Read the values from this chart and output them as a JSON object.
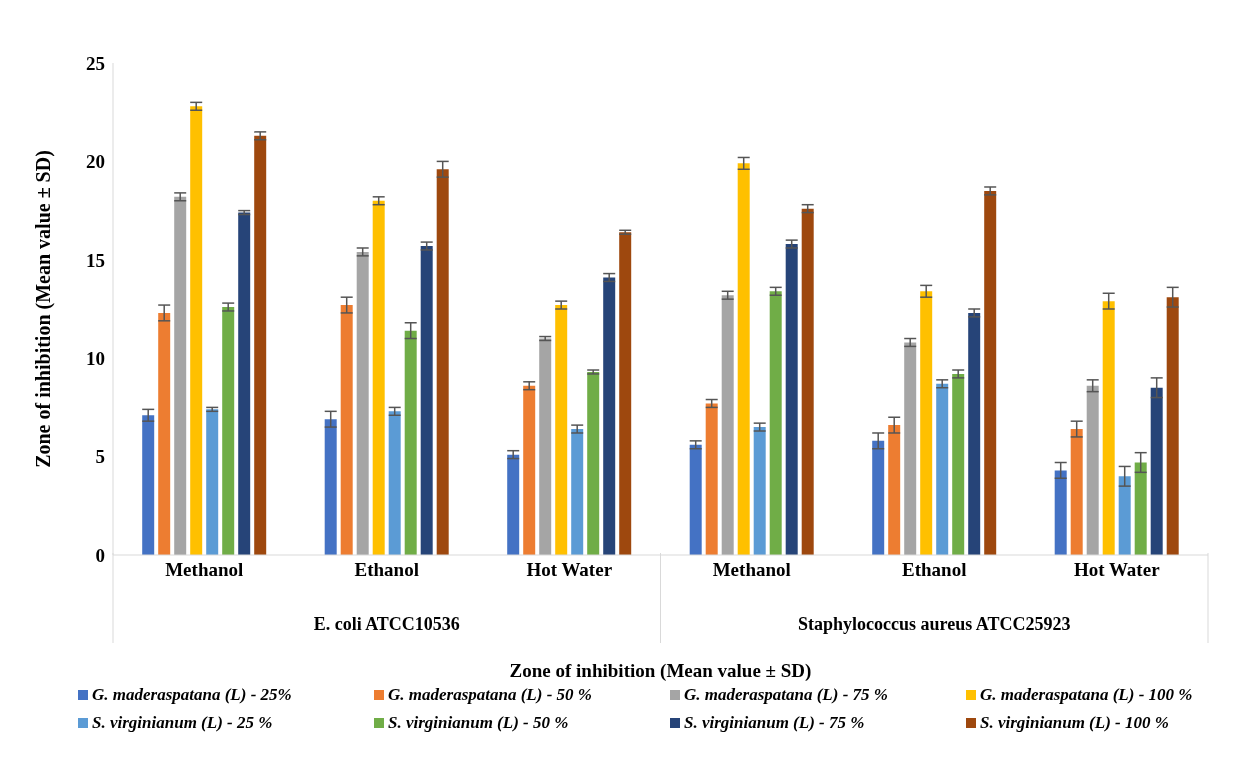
{
  "chart_data": {
    "type": "bar",
    "ylabel": "Zone of inhibition (Mean value ± SD)",
    "xlabel": "Zone of inhibition (Mean value ± SD)",
    "categories": [
      "Methanol",
      "Ethanol",
      "Hot Water",
      "Methanol",
      "Ethanol",
      "Hot Water"
    ],
    "annotations": [
      "E. coli ATCC10536",
      "Staphylococcus aureus ATCC25923"
    ],
    "series": [
      {
        "name": "G. maderaspatana (L) - 25%",
        "color": "#4472c4",
        "values": [
          7.1,
          6.9,
          5.1,
          5.6,
          5.8,
          4.3
        ],
        "errors": [
          0.3,
          0.4,
          0.2,
          0.2,
          0.4,
          0.4
        ]
      },
      {
        "name": "G. maderaspatana (L) - 50 %",
        "color": "#ed7d31",
        "values": [
          12.3,
          12.7,
          8.6,
          7.7,
          6.6,
          6.4
        ],
        "errors": [
          0.4,
          0.4,
          0.2,
          0.2,
          0.4,
          0.4
        ]
      },
      {
        "name": "G. maderaspatana (L) - 75 %",
        "color": "#a5a5a5",
        "values": [
          18.2,
          15.4,
          11.0,
          13.2,
          10.8,
          8.6
        ],
        "errors": [
          0.2,
          0.2,
          0.1,
          0.2,
          0.2,
          0.3
        ]
      },
      {
        "name": "G. maderaspatana (L) - 100 %",
        "color": "#ffc000",
        "values": [
          22.8,
          18.0,
          12.7,
          19.9,
          13.4,
          12.9
        ],
        "errors": [
          0.2,
          0.2,
          0.2,
          0.3,
          0.3,
          0.4
        ]
      },
      {
        "name": "S. virginianum (L) - 25 %",
        "color": "#5b9bd5",
        "values": [
          7.4,
          7.3,
          6.4,
          6.5,
          8.7,
          4.0
        ],
        "errors": [
          0.1,
          0.2,
          0.2,
          0.2,
          0.2,
          0.5
        ]
      },
      {
        "name": "S. virginianum (L) - 50 %",
        "color": "#70ad47",
        "values": [
          12.6,
          11.4,
          9.3,
          13.4,
          9.2,
          4.7
        ],
        "errors": [
          0.2,
          0.4,
          0.1,
          0.2,
          0.2,
          0.5
        ]
      },
      {
        "name": "S. virginianum (L) - 75 %",
        "color": "#264478",
        "values": [
          17.4,
          15.7,
          14.1,
          15.8,
          12.3,
          8.5
        ],
        "errors": [
          0.1,
          0.2,
          0.2,
          0.2,
          0.2,
          0.5
        ]
      },
      {
        "name": "S. virginianum (L) - 100 %",
        "color": "#9e480e",
        "values": [
          21.3,
          19.6,
          16.4,
          17.6,
          18.5,
          13.1
        ],
        "errors": [
          0.2,
          0.4,
          0.1,
          0.2,
          0.2,
          0.5
        ]
      }
    ],
    "ylim": [
      0,
      25
    ],
    "yticks": [
      0,
      5,
      10,
      15,
      20,
      25
    ],
    "legend": "bottom"
  }
}
